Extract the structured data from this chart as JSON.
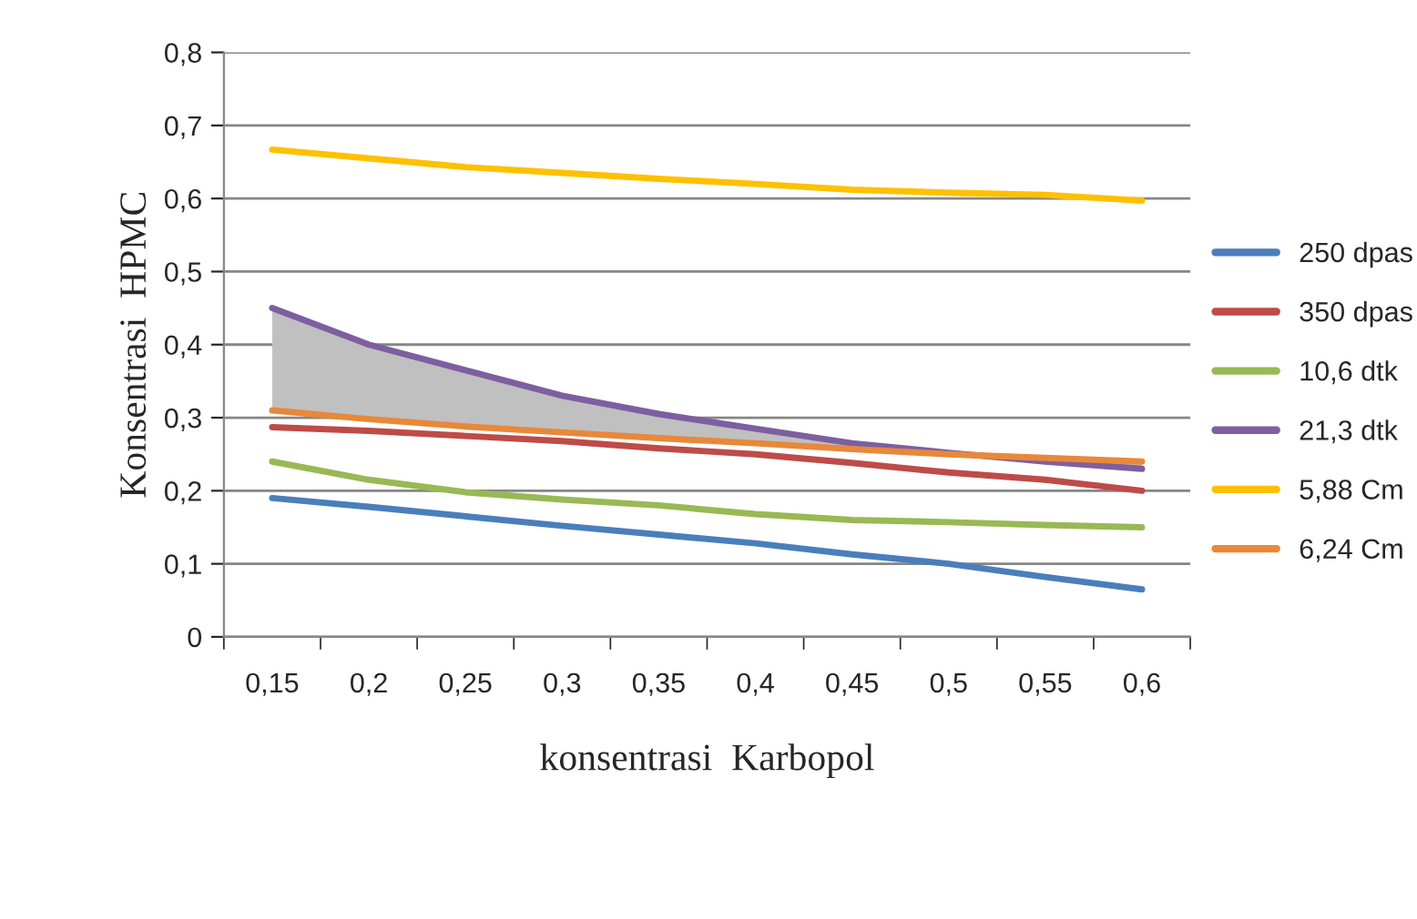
{
  "chart_data": {
    "type": "line",
    "xlabel": "konsentrasi  Karbopol",
    "ylabel": "Konsentrasi  HPMC",
    "categories": [
      "0,15",
      "0,2",
      "0,25",
      "0,3",
      "0,35",
      "0,4",
      "0,45",
      "0,5",
      "0,55",
      "0,6"
    ],
    "series": [
      {
        "name": "250 dpas",
        "color": "#4a7ebb",
        "values": [
          0.19,
          0.178,
          0.165,
          0.152,
          0.14,
          0.128,
          0.113,
          0.1,
          0.082,
          0.065
        ]
      },
      {
        "name": "350 dpas",
        "color": "#be4b48",
        "values": [
          0.287,
          0.282,
          0.275,
          0.268,
          0.258,
          0.25,
          0.238,
          0.225,
          0.215,
          0.2
        ]
      },
      {
        "name": "10,6 dtk",
        "color": "#98b954",
        "values": [
          0.24,
          0.215,
          0.198,
          0.188,
          0.18,
          0.168,
          0.16,
          0.157,
          0.153,
          0.15
        ]
      },
      {
        "name": "21,3 dtk",
        "color": "#7d5fa0",
        "values": [
          0.45,
          0.4,
          0.365,
          0.33,
          0.305,
          0.285,
          0.265,
          0.252,
          0.24,
          0.23
        ],
        "lower": [
          0.31,
          0.298,
          0.288,
          0.28,
          0.272,
          0.265,
          0.257,
          0.25,
          0.245,
          0.24
        ],
        "upper": [
          0.45,
          0.4,
          0.365,
          0.33,
          0.305,
          0.285,
          0.265,
          0.252,
          0.24,
          0.23
        ]
      },
      {
        "name": "5,88 Cm",
        "color": "#ffc000",
        "values": [
          0.667,
          0.655,
          0.643,
          0.635,
          0.627,
          0.62,
          0.612,
          0.608,
          0.605,
          0.597
        ]
      },
      {
        "name": "6,24 Cm",
        "color": "#e8883a",
        "values": [
          0.31,
          0.298,
          0.288,
          0.28,
          0.272,
          0.265,
          0.257,
          0.25,
          0.245,
          0.24
        ]
      }
    ],
    "ylim": [
      0,
      0.8
    ],
    "yticks": [
      0,
      {
        "value": 0.1,
        "label": "0,1"
      },
      {
        "value": 0.2,
        "label": "0,2"
      },
      {
        "value": 0.3,
        "label": "0,3"
      },
      {
        "value": 0.4,
        "label": "0,4"
      },
      {
        "value": 0.5,
        "label": "0,5"
      },
      {
        "value": 0.6,
        "label": "0,6"
      },
      {
        "value": 0.7,
        "label": "0,7"
      },
      {
        "value": 0.8,
        "label": "0,8"
      }
    ],
    "grid": "y",
    "legend": "right",
    "marker": "none",
    "line_style": "solid"
  }
}
